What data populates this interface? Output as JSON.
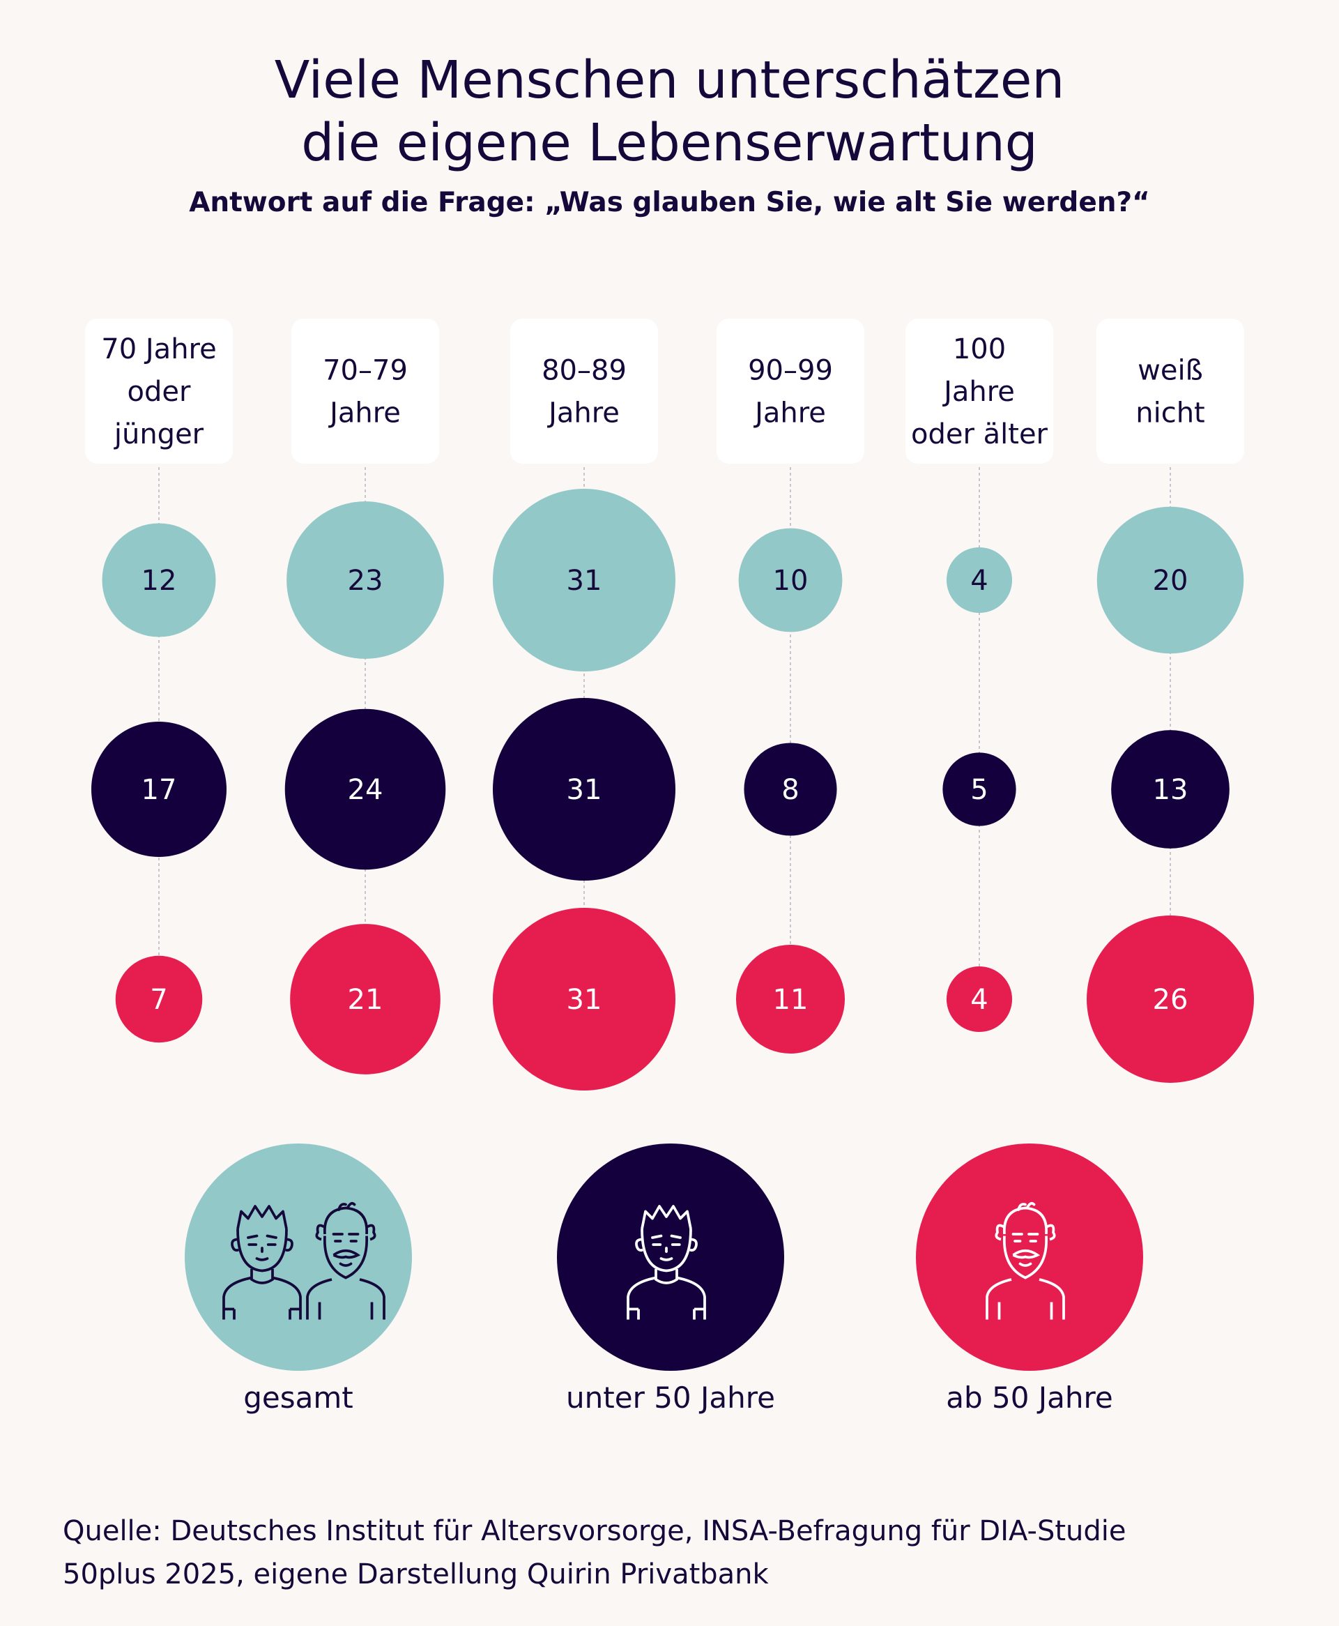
{
  "title": {
    "line1": "Viele Menschen unterschätzen",
    "line2": "die eigene Lebenserwartung"
  },
  "subtitle": "Antwort auf die Frage: „Was glauben Sie, wie alt Sie werden?“",
  "chart_data": {
    "type": "bubble-matrix",
    "title": "Viele Menschen unterschätzen die eigene Lebenserwartung",
    "subtitle": "Antwort auf die Frage: „Was glauben Sie, wie alt Sie werden?“",
    "unit": "%",
    "categories": [
      [
        "70 Jahre",
        "oder",
        "jünger"
      ],
      [
        "70–79",
        "Jahre"
      ],
      [
        "80–89",
        "Jahre"
      ],
      [
        "90–99",
        "Jahre"
      ],
      [
        "100",
        "Jahre",
        "oder älter"
      ],
      [
        "weiß",
        "nicht"
      ]
    ],
    "series": [
      {
        "name": "gesamt",
        "color": "#93c8c8",
        "text_color": "#14093a",
        "values": [
          12,
          23,
          31,
          10,
          4,
          20
        ]
      },
      {
        "name": "unter 50 Jahre",
        "color": "#14003c",
        "text_color": "#ffffff",
        "values": [
          17,
          24,
          31,
          8,
          5,
          13
        ]
      },
      {
        "name": "ab 50 Jahre",
        "color": "#e61e50",
        "text_color": "#ffffff",
        "values": [
          7,
          21,
          31,
          11,
          4,
          26
        ]
      }
    ]
  },
  "legend": [
    {
      "label": "gesamt",
      "icon": "two-people-icon"
    },
    {
      "label": "unter 50 Jahre",
      "icon": "young-man-icon"
    },
    {
      "label": "ab 50 Jahre",
      "icon": "old-man-icon"
    }
  ],
  "source": {
    "line1": "Quelle: Deutsches Institut für Altersvorsorge, INSA-Befragung für DIA-Studie",
    "line2": "50plus 2025, eigene Darstellung Quirin Privatbank"
  }
}
